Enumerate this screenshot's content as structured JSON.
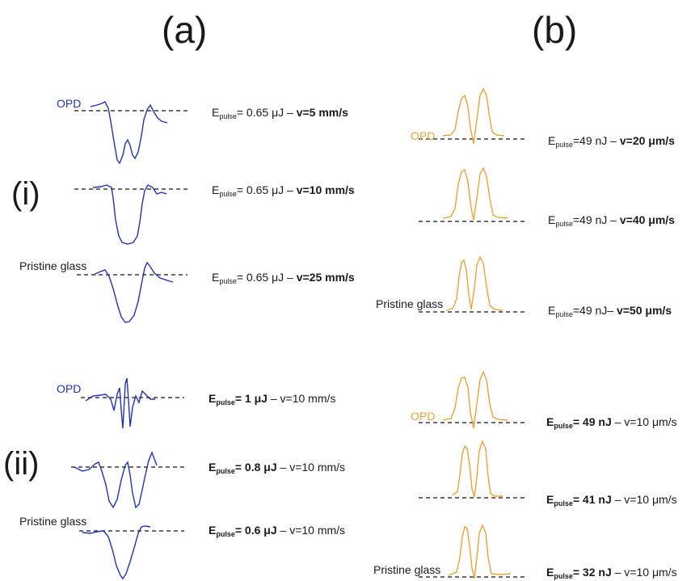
{
  "panels": {
    "a": {
      "title": "(a)",
      "color": "#2232b4",
      "rows": {
        "i": {
          "label": "(i)",
          "opd": "OPD",
          "pristine": "Pristine glass",
          "captions": [
            {
              "e": "E",
              "sub": "pulse",
              "rest": "= 0.65 μJ – ",
              "bold": "v=5 mm/s"
            },
            {
              "e": "E",
              "sub": "pulse",
              "rest": "= 0.65 μJ – ",
              "bold": "v=10 mm/s"
            },
            {
              "e": "E",
              "sub": "pulse",
              "rest": "= 0.65 μJ – ",
              "bold": "v=25 mm/s"
            }
          ]
        },
        "ii": {
          "label": "(ii)",
          "opd": "OPD",
          "pristine": "Pristine glass",
          "captions": [
            {
              "bold": "E",
              "sub": "pulse",
              "bold2": "= 1 μJ",
              "rest": " – v=10 mm/s"
            },
            {
              "bold": "E",
              "sub": "pulse",
              "bold2": "= 0.8 μJ",
              "rest": " – v=10 mm/s"
            },
            {
              "bold": "E",
              "sub": "pulse",
              "bold2": "= 0.6 μJ",
              "rest": " – v=10 mm/s"
            }
          ]
        }
      }
    },
    "b": {
      "title": "(b)",
      "color": "#e8a33c",
      "rows": {
        "i": {
          "opd": "OPD",
          "pristine": "Pristine glass",
          "captions": [
            {
              "e": "E",
              "sub": "pulse",
              "rest": "=49 nJ – ",
              "bold": "v=20 μm/s"
            },
            {
              "e": "E",
              "sub": "pulse",
              "rest": "=49 nJ – ",
              "bold": "v=40 μm/s"
            },
            {
              "e": "E",
              "sub": "pulse",
              "rest": "=49 nJ– ",
              "bold": "v=50 μm/s"
            }
          ]
        },
        "ii": {
          "opd": "OPD",
          "pristine": "Pristine glass",
          "captions": [
            {
              "bold": "E",
              "sub": "pulse",
              "bold2": "= 49 nJ",
              "rest": " – v=10 μm/s"
            },
            {
              "bold": "E",
              "sub": "pulse",
              "bold2": "= 41 nJ",
              "rest": " – v=10 μm/s"
            },
            {
              "bold": "E",
              "sub": "pulse",
              "bold2": "= 32 nJ",
              "rest": " – v=10 μm/s"
            }
          ]
        }
      }
    }
  }
}
